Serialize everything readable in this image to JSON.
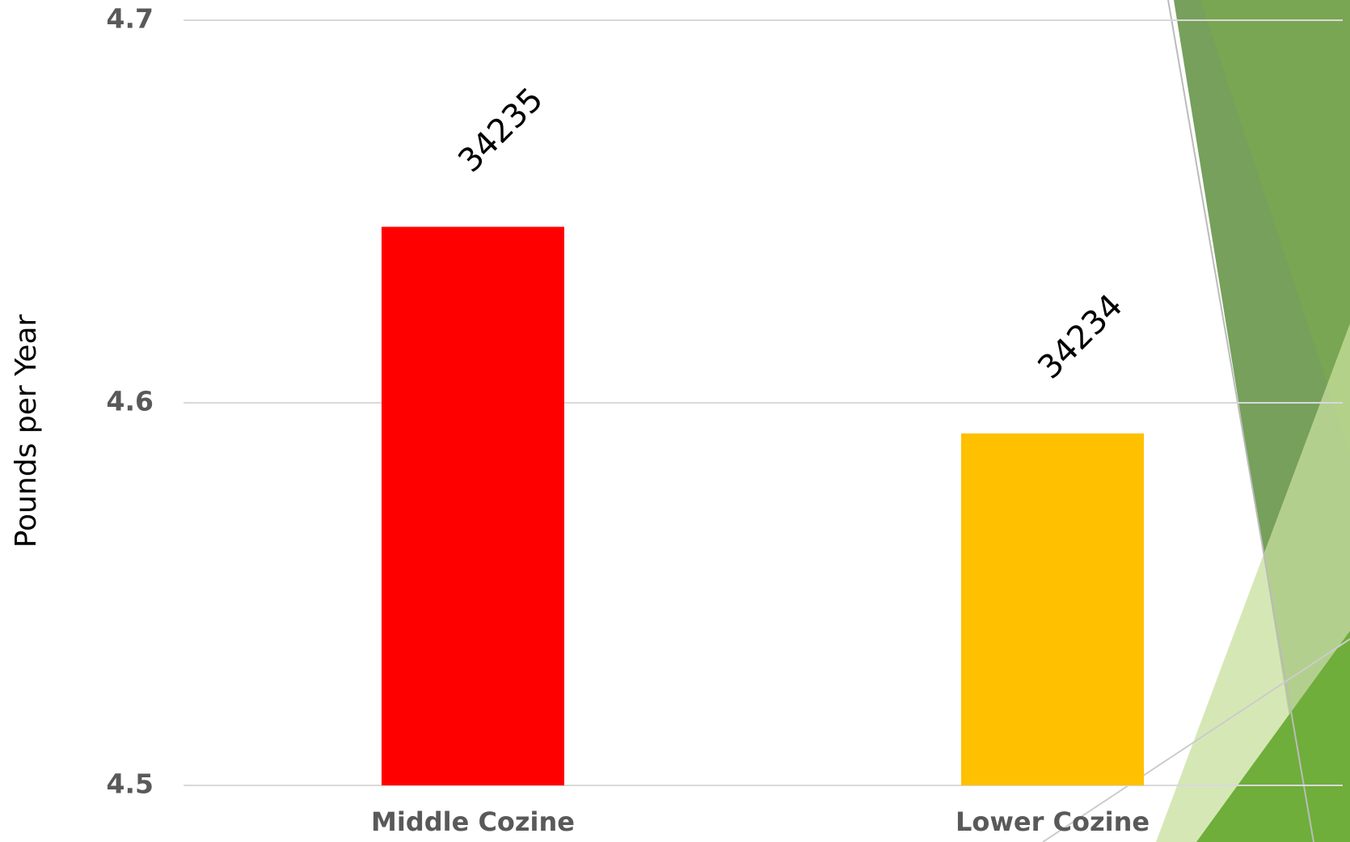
{
  "chart_data": {
    "type": "bar",
    "y_label": "Pounds per Year",
    "categories": [
      "Middle Cozine",
      "Lower Cozine"
    ],
    "values": [
      4.646,
      4.592
    ],
    "colors": [
      "#ff0000",
      "#ffc000"
    ],
    "annotations": [
      "34235",
      "34234"
    ],
    "ylim": [
      4.5,
      4.7
    ],
    "yticks": [
      4.5,
      4.6,
      4.7
    ],
    "grid": true
  }
}
